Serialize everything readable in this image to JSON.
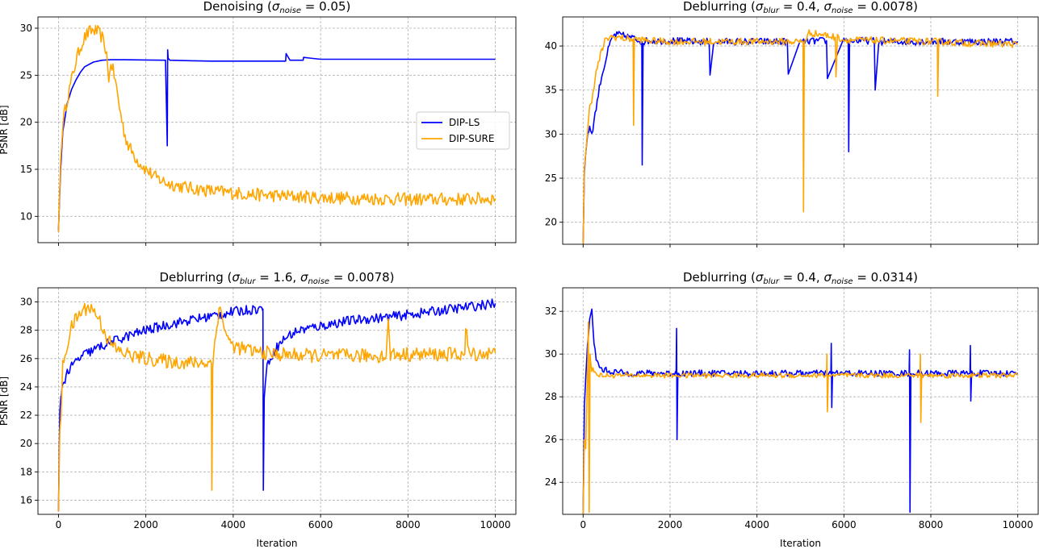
{
  "colors": {
    "ls": "#0000ff",
    "sure": "#ffa500",
    "grid": "#b0b0b0"
  },
  "chart_data": [
    {
      "type": "line",
      "title_main": "Denoising (",
      "title_math": "σnoise = 0.05",
      "title_end": ")",
      "title": {
        "prefix": "Denoising (",
        "sub1": "noise",
        "value1": " = 0.05",
        "sub2": "",
        "value2": "",
        "suffix": ")"
      },
      "xlabel": "",
      "ylabel": "PSNR [dB]",
      "xlim": [
        -470,
        10470
      ],
      "ylim": [
        7.2,
        31.2
      ],
      "xticks": [
        0,
        2000,
        4000,
        6000,
        8000,
        10000
      ],
      "xtick_labels_visible": false,
      "yticks": [
        10,
        15,
        20,
        25,
        30
      ],
      "grid": true,
      "legend": {
        "placement": "center-right",
        "entries": [
          "DIP-LS",
          "DIP-SURE"
        ]
      },
      "series": [
        {
          "name": "DIP-LS",
          "x": [
            0,
            50,
            100,
            200,
            300,
            400,
            500,
            600,
            800,
            1000,
            1200,
            1500,
            2000,
            2450,
            2490,
            2500,
            2510,
            2550,
            3000,
            3500,
            4000,
            4500,
            5000,
            5200,
            5210,
            5300,
            5500,
            5600,
            5610,
            6000,
            7000,
            8000,
            9000,
            10000
          ],
          "y": [
            8.5,
            15,
            19,
            22,
            23.5,
            24.5,
            25.3,
            25.9,
            26.4,
            26.6,
            26.65,
            26.65,
            26.62,
            26.6,
            17.5,
            27.7,
            26.8,
            26.6,
            26.55,
            26.5,
            26.5,
            26.5,
            26.5,
            26.5,
            27.3,
            26.6,
            26.6,
            26.6,
            26.9,
            26.7,
            26.7,
            26.7,
            26.7,
            26.7
          ]
        },
        {
          "name": "DIP-SURE",
          "x": [
            0,
            50,
            100,
            200,
            300,
            400,
            500,
            600,
            700,
            800,
            900,
            1000,
            1100,
            1150,
            1200,
            1300,
            1400,
            1500,
            1600,
            1800,
            2000,
            2200,
            2500,
            3000,
            3500,
            4000,
            4500,
            5000,
            5500,
            6000,
            7000,
            8000,
            9000,
            10000
          ],
          "y": [
            8.3,
            16,
            20,
            22.5,
            24.5,
            26.5,
            28,
            29,
            29.6,
            29.8,
            29.6,
            29,
            27.5,
            24,
            26.5,
            24.5,
            21.5,
            19,
            17.5,
            16,
            15,
            14.2,
            13.5,
            13,
            12.7,
            12.5,
            12.3,
            12.2,
            12.1,
            12,
            11.9,
            11.8,
            11.8,
            11.9
          ],
          "noise": 0.7
        }
      ]
    },
    {
      "type": "line",
      "title": {
        "prefix": "Deblurring (",
        "sub1": "blur",
        "value1": " = 0.4, ",
        "sub2": "noise",
        "value2": " = 0.0078",
        "suffix": ")"
      },
      "xlabel": "",
      "ylabel": "",
      "xlim": [
        -470,
        10470
      ],
      "ylim": [
        17.5,
        43.3
      ],
      "xticks": [
        0,
        2000,
        4000,
        6000,
        8000,
        10000
      ],
      "xtick_labels_visible": false,
      "yticks": [
        20,
        25,
        30,
        35,
        40
      ],
      "grid": true,
      "series": [
        {
          "name": "DIP-LS",
          "x": [
            0,
            30,
            80,
            150,
            200,
            300,
            400,
            500,
            600,
            700,
            800,
            1000,
            1200,
            1350,
            1360,
            1380,
            1500,
            2000,
            2500,
            2900,
            2920,
            3000,
            3500,
            4000,
            4700,
            4720,
            5000,
            5500,
            5600,
            5620,
            6000,
            6100,
            6110,
            6130,
            6500,
            6700,
            6720,
            6800,
            7000,
            8000,
            9000,
            10000
          ],
          "y": [
            17.5,
            26,
            29,
            31,
            30,
            33,
            36,
            38,
            40,
            41.2,
            41.3,
            41.1,
            40.8,
            40.5,
            26.5,
            40.5,
            40.6,
            40.6,
            40.5,
            40.5,
            36.7,
            40.5,
            40.5,
            40.5,
            40.5,
            36.8,
            40.5,
            40.6,
            40.6,
            36.3,
            40.7,
            40.7,
            28,
            40.6,
            40.6,
            40.6,
            35,
            40.5,
            40.5,
            40.5,
            40.5,
            40.5
          ],
          "noise": 0.4
        },
        {
          "name": "DIP-SURE",
          "x": [
            0,
            30,
            80,
            150,
            200,
            300,
            400,
            500,
            600,
            700,
            800,
            1000,
            1150,
            1160,
            1180,
            1500,
            2000,
            3000,
            4000,
            5000,
            5060,
            5070,
            5090,
            5200,
            5500,
            5800,
            5820,
            5850,
            6000,
            7000,
            8000,
            8150,
            8160,
            8180,
            9000,
            10000
          ],
          "y": [
            17.5,
            26,
            29,
            33,
            34,
            37,
            39,
            40.5,
            41,
            41,
            41,
            40.8,
            40.8,
            31,
            40.8,
            40.6,
            40.5,
            40.5,
            40.5,
            40.5,
            40.5,
            21.2,
            40.5,
            41.5,
            41.3,
            41,
            36.5,
            41,
            40.7,
            40.6,
            40.5,
            40.5,
            34.3,
            40.5,
            40.3,
            40.2
          ],
          "noise": 0.4
        }
      ]
    },
    {
      "type": "line",
      "title": {
        "prefix": "Deblurring (",
        "sub1": "blur",
        "value1": " = 1.6, ",
        "sub2": "noise",
        "value2": " = 0.0078",
        "suffix": ")"
      },
      "xlabel": "Iteration",
      "ylabel": "PSNR [dB]",
      "xlim": [
        -470,
        10470
      ],
      "ylim": [
        15,
        31
      ],
      "xticks": [
        0,
        2000,
        4000,
        6000,
        8000,
        10000
      ],
      "xtick_labels_visible": true,
      "yticks": [
        16,
        18,
        20,
        22,
        24,
        26,
        28,
        30
      ],
      "grid": true,
      "series": [
        {
          "name": "DIP-LS",
          "x": [
            0,
            30,
            60,
            100,
            200,
            400,
            600,
            1000,
            1500,
            2000,
            2500,
            3000,
            3500,
            4000,
            4500,
            4680,
            4690,
            4710,
            4750,
            4800,
            5000,
            5200,
            5500,
            6000,
            6500,
            7000,
            7500,
            8000,
            8500,
            9000,
            9500,
            10000
          ],
          "y": [
            15.2,
            22,
            23.5,
            24.2,
            25,
            25.8,
            26.3,
            26.9,
            27.5,
            28,
            28.4,
            28.7,
            29,
            29.3,
            29.5,
            29.5,
            16.7,
            23.5,
            24.8,
            25.8,
            26.8,
            27.5,
            28,
            28.3,
            28.6,
            28.8,
            28.9,
            29.1,
            29.3,
            29.5,
            29.7,
            29.9
          ],
          "noise": 0.35
        },
        {
          "name": "DIP-SURE",
          "x": [
            0,
            30,
            60,
            100,
            200,
            300,
            400,
            500,
            600,
            700,
            800,
            900,
            1000,
            1100,
            1200,
            1400,
            1700,
            2000,
            2500,
            3000,
            3400,
            3500,
            3510,
            3530,
            3600,
            3700,
            3800,
            3900,
            4000,
            4200,
            4500,
            5000,
            6000,
            7000,
            7500,
            7550,
            7600,
            8000,
            9000,
            9300,
            9320,
            9400,
            10000
          ],
          "y": [
            15.2,
            20.5,
            22,
            25.5,
            27,
            28.2,
            28.8,
            29.2,
            29.5,
            29.7,
            29.4,
            29,
            28.3,
            27.6,
            27,
            26.5,
            26.2,
            26,
            25.8,
            25.7,
            25.7,
            25.7,
            16.7,
            25.5,
            28,
            29.6,
            28.2,
            27.2,
            26.9,
            26.7,
            26.5,
            26.3,
            26.2,
            26.2,
            26.2,
            28.5,
            26.3,
            26.3,
            26.3,
            26.3,
            28.2,
            26.3,
            26.4
          ],
          "noise": 0.5
        }
      ]
    },
    {
      "type": "line",
      "title": {
        "prefix": "Deblurring (",
        "sub1": "blur",
        "value1": " = 0.4, ",
        "sub2": "noise",
        "value2": " = 0.0314",
        "suffix": ")"
      },
      "xlabel": "Iteration",
      "ylabel": "",
      "xlim": [
        -470,
        10470
      ],
      "ylim": [
        22.5,
        33.1
      ],
      "xticks": [
        0,
        2000,
        4000,
        6000,
        8000,
        10000
      ],
      "xtick_labels_visible": true,
      "yticks": [
        24,
        26,
        28,
        30,
        32
      ],
      "grid": true,
      "series": [
        {
          "name": "DIP-LS",
          "x": [
            0,
            30,
            60,
            100,
            150,
            200,
            250,
            300,
            400,
            600,
            1000,
            1500,
            2000,
            2140,
            2150,
            2160,
            2180,
            2200,
            2500,
            3000,
            4000,
            5000,
            5700,
            5710,
            5720,
            5740,
            6000,
            7000,
            7500,
            7510,
            7520,
            7540,
            8000,
            8900,
            8910,
            8920,
            8940,
            9500,
            10000
          ],
          "y": [
            22.5,
            27.5,
            29,
            30.5,
            31.5,
            32,
            30.5,
            29.8,
            29.3,
            29.2,
            29.1,
            29.1,
            29.1,
            29.1,
            31.2,
            26,
            29.1,
            29.1,
            29.1,
            29.1,
            29.1,
            29.1,
            29.1,
            30.5,
            27.5,
            29.1,
            29.1,
            29.1,
            29.1,
            30.2,
            22.6,
            29.1,
            29.1,
            29.1,
            30.4,
            27.8,
            29.1,
            29.1,
            29.1
          ],
          "noise": 0.15
        },
        {
          "name": "DIP-SURE",
          "x": [
            0,
            30,
            60,
            100,
            120,
            140,
            160,
            180,
            200,
            250,
            300,
            400,
            600,
            1000,
            2000,
            3000,
            4000,
            5000,
            5600,
            5610,
            5620,
            5640,
            6000,
            7000,
            7750,
            7760,
            7770,
            7790,
            8000,
            9000,
            10000
          ],
          "y": [
            22.5,
            26,
            25.6,
            29,
            31.5,
            22.6,
            30,
            29.5,
            29.3,
            29.2,
            29.1,
            29,
            29,
            29,
            29,
            29,
            29,
            29,
            29,
            30,
            27.3,
            29,
            29,
            29,
            29,
            30,
            26.8,
            29,
            29,
            29,
            29
          ],
          "noise": 0.12
        }
      ]
    }
  ]
}
